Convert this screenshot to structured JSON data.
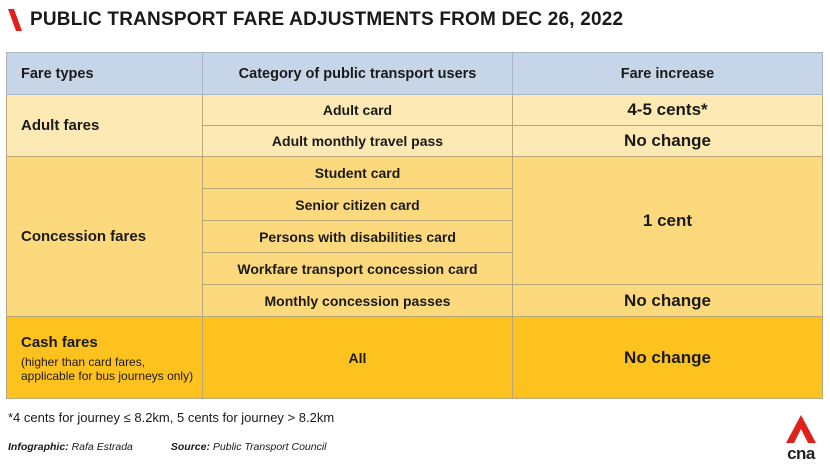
{
  "title": "PUBLIC TRANSPORT FARE ADJUSTMENTS FROM DEC 26, 2022",
  "colors": {
    "accent_red": "#e0201b",
    "header_blue": "#c7d5e8",
    "adult_row": "#fde9b3",
    "concession_row": "#fdd97e",
    "cash_row": "#fec21f"
  },
  "table": {
    "headers": [
      "Fare types",
      "Category of public transport users",
      "Fare increase"
    ],
    "adult": {
      "label": "Adult fares",
      "rows": [
        {
          "category": "Adult card",
          "increase": "4-5 cents*"
        },
        {
          "category": "Adult monthly travel pass",
          "increase": "No change"
        }
      ]
    },
    "concession": {
      "label": "Concession fares",
      "categories": [
        "Student card",
        "Senior citizen card",
        "Persons with disabilities card",
        "Workfare transport concession card"
      ],
      "grouped_increase": "1 cent",
      "last_row": {
        "category": "Monthly concession passes",
        "increase": "No change"
      }
    },
    "cash": {
      "label": "Cash fares",
      "note": "(higher than card fares, applicable for bus journeys only)",
      "category": "All",
      "increase": "No change"
    }
  },
  "footnote": "*4 cents for journey ≤ 8.2km, 5 cents for journey > 8.2km",
  "credits": {
    "infographic_label": "Infographic:",
    "infographic_value": "Rafa Estrada",
    "source_label": "Source:",
    "source_value": "Public Transport Council"
  },
  "logo": {
    "icon": "cna-logo-icon",
    "text": "cna"
  }
}
